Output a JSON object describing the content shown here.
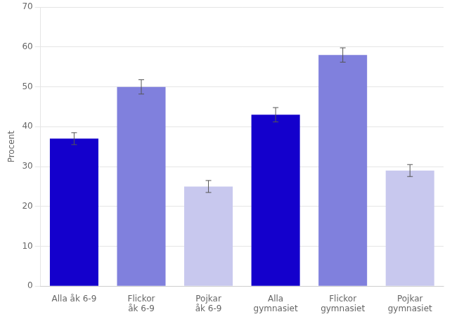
{
  "chart_data": {
    "type": "bar",
    "categories": [
      "Alla åk 6-9",
      "Flickor\nåk 6-9",
      "Pojkar\nåk 6-9",
      "Alla\ngymnasiet",
      "Flickor\ngymnasiet",
      "Pojkar\ngymnasiet"
    ],
    "values": [
      37.0,
      50.0,
      25.0,
      43.0,
      58.0,
      29.0
    ],
    "errors": [
      1.5,
      1.8,
      1.5,
      1.8,
      1.8,
      1.5
    ],
    "colors": [
      "#1400cc",
      "#8080dd",
      "#c8c8ee",
      "#1400cc",
      "#8080dd",
      "#c8c8ee"
    ],
    "ylabel": "Procent",
    "ylim": [
      0,
      70
    ],
    "yticks": [
      0,
      10,
      20,
      30,
      40,
      50,
      60,
      70
    ],
    "grid": true
  }
}
